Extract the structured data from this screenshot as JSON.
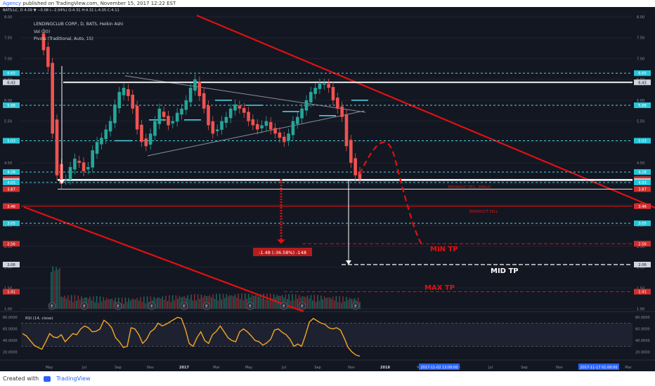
{
  "header": {
    "agency": "Agency",
    "published_text": "published on TradingView.com, November 15, 2017 12:22 EST",
    "ticker_line": "BATS:LC, D  4.09 ▼ −0.08 (−2.04%) O:4.31 H:4.31 L:4.05 C:4.11"
  },
  "legend": {
    "title": "LENDINGCLUB CORP., D, BATS, Heikin Ashi",
    "vol": "Vol (20)",
    "pivots": "Pivots (Traditional, Auto, 15)",
    "rsi": "RSI (14, close)"
  },
  "footer": {
    "created_with": "Created with",
    "brand": "TradingView"
  },
  "colors": {
    "background": "#131722",
    "up": "#26a69a",
    "down": "#ef5350",
    "trend_red": "#e01010",
    "pivot_cyan": "#4dd0e1",
    "rsi": "#f5a623",
    "white": "#ffffff",
    "grey_line": "#8a8f98"
  },
  "chart_data": {
    "type": "candlestick",
    "title": "LENDINGCLUB CORP., D, BATS, Heikin Ashi",
    "x_ticks": [
      "May",
      "Jul",
      "Sep",
      "Nov",
      "2017",
      "Mar",
      "May",
      "Jul",
      "Sep",
      "Nov",
      "2018",
      "Mar",
      "May",
      "Jul",
      "Sep",
      "Nov",
      "Mar"
    ],
    "x_tick_highlights": [
      "2017-11-02 13:00:00",
      "2017-11-17 01:00:00"
    ],
    "y_ticks": [
      8.0,
      7.5,
      7.0,
      6.5,
      6.0,
      5.5,
      5.0,
      4.5,
      4.0,
      3.5,
      3.0,
      2.5,
      2.0,
      1.5,
      1.0
    ],
    "ylim": [
      1.0,
      8.0
    ],
    "price_labels": [
      {
        "value": "6.65",
        "kind": "cyan"
      },
      {
        "value": "6.43",
        "kind": "white"
      },
      {
        "value": "5.88",
        "kind": "cyan"
      },
      {
        "value": "5.03",
        "kind": "cyan"
      },
      {
        "value": "4.28",
        "kind": "cyan"
      },
      {
        "value": "4.11",
        "kind": "red"
      },
      {
        "value": "4.09",
        "kind": "red"
      },
      {
        "value": "4.06",
        "kind": "white"
      },
      {
        "value": "4.03",
        "kind": "cyan"
      },
      {
        "value": "3.87",
        "kind": "red"
      },
      {
        "value": "3.46",
        "kind": "red"
      },
      {
        "value": "3.05",
        "kind": "cyan"
      },
      {
        "value": "2.56",
        "kind": "red"
      },
      {
        "value": "2.06",
        "kind": "white"
      },
      {
        "value": "1.41",
        "kind": "red"
      }
    ],
    "annotations": {
      "breakout_early": "BREAKOUT SELL (EARLY)",
      "breakout_sell": "BREAKOUT SELL",
      "measure": "-1.48 (-36.58%) -148",
      "min_tp": "MIN TP",
      "mid_tp": "MID TP",
      "max_tp": "MAX TP"
    },
    "earnings_markers": [
      "E",
      "E",
      "E",
      "E",
      "E",
      "E",
      "E",
      "E",
      "E",
      "E"
    ],
    "rsi": {
      "title": "RSI (14, close)",
      "y_ticks": [
        80.0,
        60.0,
        40.0,
        20.0
      ],
      "ylim": [
        10,
        85
      ],
      "values": [
        52,
        48,
        40,
        32,
        28,
        25,
        38,
        52,
        46,
        45,
        50,
        38,
        45,
        52,
        50,
        60,
        65,
        62,
        55,
        56,
        60,
        75,
        70,
        62,
        45,
        38,
        28,
        30,
        62,
        60,
        50,
        35,
        42,
        55,
        60,
        70,
        65,
        68,
        72,
        76,
        80,
        78,
        60,
        35,
        30,
        45,
        55,
        40,
        35,
        50,
        56,
        65,
        55,
        45,
        40,
        38,
        55,
        60,
        55,
        48,
        40,
        38,
        32,
        36,
        42,
        58,
        60,
        54,
        50,
        42,
        30,
        34,
        30,
        50,
        72,
        78,
        74,
        70,
        68,
        62,
        60,
        62,
        58,
        44,
        28,
        20,
        15,
        13
      ]
    },
    "candles_close": [
      7.2,
      6.8,
      5.2,
      4.2,
      4.0,
      4.1,
      4.4,
      4.6,
      4.5,
      4.3,
      4.4,
      4.8,
      5.0,
      5.1,
      5.3,
      5.5,
      5.9,
      6.2,
      6.3,
      6.1,
      5.8,
      5.3,
      5.0,
      4.9,
      5.2,
      5.5,
      5.8,
      5.6,
      5.4,
      5.5,
      5.7,
      5.8,
      6.0,
      6.3,
      6.5,
      6.1,
      5.8,
      5.4,
      5.2,
      5.3,
      5.5,
      5.6,
      5.8,
      5.9,
      5.8,
      5.7,
      5.5,
      5.4,
      5.3,
      5.4,
      5.5,
      5.3,
      5.2,
      5.1,
      5.0,
      5.2,
      5.5,
      5.6,
      5.8,
      6.0,
      6.2,
      6.3,
      6.4,
      6.4,
      6.3,
      6.0,
      5.8,
      5.6,
      4.9,
      4.5,
      4.2,
      4.11
    ]
  }
}
